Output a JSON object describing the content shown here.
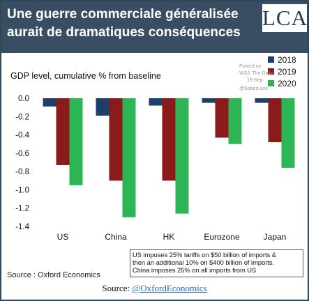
{
  "header": {
    "title_line1": "Une guerre commerciale généralisée",
    "title_line2": "aurait de dramatiques conséquences",
    "logo_text": "LCA"
  },
  "watermark": {
    "line1": "Posted on",
    "line2": "WSJ: The Daily",
    "line3": "19-Sep",
    "line4": "@SoberLook"
  },
  "note": {
    "line1": "US imposes 25% tariffs on $50 billion of imports &",
    "line2": "then an additional 10% on $400 billion of imports.",
    "line3": "China imposes 25% on all imports from US"
  },
  "source_inner": "Source : Oxford Economics",
  "footer": {
    "prefix": "Source: ",
    "link": "@OxfordEconomics"
  },
  "chart_data": {
    "type": "bar",
    "title": "GDP level, cumulative % from baseline",
    "categories": [
      "US",
      "China",
      "HK",
      "Eurozone",
      "Japan"
    ],
    "series": [
      {
        "name": "2018",
        "color": "#1c3f6b",
        "values": [
          -0.09,
          -0.19,
          -0.08,
          -0.05,
          -0.05
        ]
      },
      {
        "name": "2019",
        "color": "#8b1a1a",
        "values": [
          -0.73,
          -0.9,
          -0.9,
          -0.43,
          -0.48
        ]
      },
      {
        "name": "2020",
        "color": "#2db556",
        "values": [
          -0.95,
          -1.3,
          -1.26,
          -0.5,
          -0.76
        ]
      }
    ],
    "ylim": [
      -1.4,
      0.0
    ],
    "yticks": [
      "0.0",
      "-0.2",
      "-0.4",
      "-0.6",
      "-0.8",
      "-1.0",
      "-1.2",
      "-1.4"
    ],
    "legend_position": "top-right",
    "grid": false
  }
}
